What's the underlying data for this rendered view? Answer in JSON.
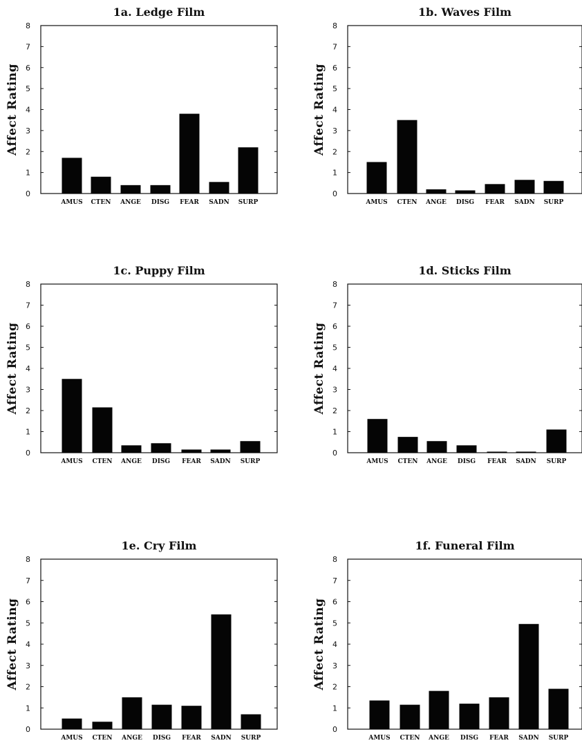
{
  "chart_data": [
    {
      "type": "bar",
      "title": "1a.  Ledge Film",
      "ylabel": "Affect Rating",
      "xlabel": "",
      "categories": [
        "AMUS",
        "CTEN",
        "ANGE",
        "DISG",
        "FEAR",
        "SADN",
        "SURP"
      ],
      "values": [
        1.7,
        0.8,
        0.4,
        0.4,
        3.8,
        0.55,
        2.2
      ],
      "ylim": [
        0,
        8
      ],
      "yticks": [
        "0",
        "1",
        "2",
        "3",
        "4",
        "5",
        "6",
        "7",
        "8"
      ]
    },
    {
      "type": "bar",
      "title": "1b.  Waves Film",
      "ylabel": "Affect Rating",
      "xlabel": "",
      "categories": [
        "AMUS",
        "CTEN",
        "ANGE",
        "DISG",
        "FEAR",
        "SADN",
        "SURP"
      ],
      "values": [
        1.5,
        3.5,
        0.2,
        0.15,
        0.45,
        0.65,
        0.6
      ],
      "ylim": [
        0,
        8
      ],
      "yticks": [
        "0",
        "1",
        "2",
        "3",
        "4",
        "5",
        "6",
        "7",
        "8"
      ]
    },
    {
      "type": "bar",
      "title": "1c.  Puppy Film",
      "ylabel": "Affect Rating",
      "xlabel": "",
      "categories": [
        "AMUS",
        "CTEN",
        "ANGE",
        "DISG",
        "FEAR",
        "SADN",
        "SURP"
      ],
      "values": [
        3.5,
        2.15,
        0.35,
        0.45,
        0.15,
        0.15,
        0.55
      ],
      "ylim": [
        0,
        8
      ],
      "yticks": [
        "0",
        "1",
        "2",
        "3",
        "4",
        "5",
        "6",
        "7",
        "8"
      ]
    },
    {
      "type": "bar",
      "title": "1d.  Sticks Film",
      "ylabel": "Affect Rating",
      "xlabel": "",
      "categories": [
        "AMUS",
        "CTEN",
        "ANGE",
        "DISG",
        "FEAR",
        "SADN",
        "SURP"
      ],
      "values": [
        1.6,
        0.75,
        0.55,
        0.35,
        0.05,
        0.05,
        1.1
      ],
      "ylim": [
        0,
        8
      ],
      "yticks": [
        "0",
        "1",
        "2",
        "3",
        "4",
        "5",
        "6",
        "7",
        "8"
      ]
    },
    {
      "type": "bar",
      "title": "1e. Cry Film",
      "ylabel": "Affect Rating",
      "xlabel": "",
      "categories": [
        "AMUS",
        "CTEN",
        "ANGE",
        "DISG",
        "FEAR",
        "SADN",
        "SURP"
      ],
      "values": [
        0.5,
        0.35,
        1.5,
        1.15,
        1.1,
        5.4,
        0.7
      ],
      "ylim": [
        0,
        8
      ],
      "yticks": [
        "0",
        "1",
        "2",
        "3",
        "4",
        "5",
        "6",
        "7",
        "8"
      ]
    },
    {
      "type": "bar",
      "title": "1f.  Funeral Film",
      "ylabel": "Affect Rating",
      "xlabel": "",
      "categories": [
        "AMUS",
        "CTEN",
        "ANGE",
        "DISG",
        "FEAR",
        "SADN",
        "SURP"
      ],
      "values": [
        1.35,
        1.15,
        1.8,
        1.2,
        1.5,
        4.95,
        1.9
      ],
      "ylim": [
        0,
        8
      ],
      "yticks": [
        "0",
        "1",
        "2",
        "3",
        "4",
        "5",
        "6",
        "7",
        "8"
      ]
    }
  ]
}
